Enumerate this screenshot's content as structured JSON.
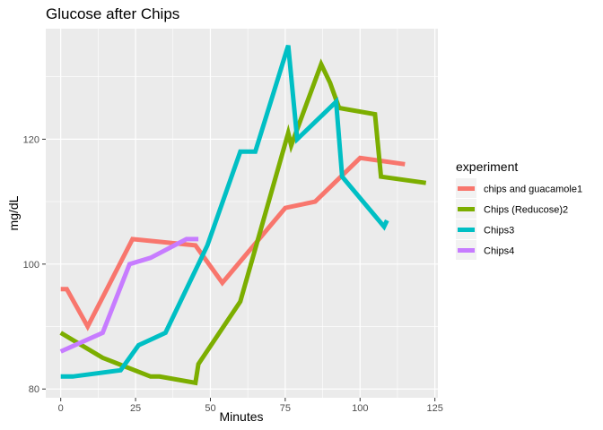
{
  "chart_data": {
    "type": "line",
    "title": "Glucose after Chips",
    "xlabel": "Minutes",
    "ylabel": "mg/dL",
    "xlim": [
      -5,
      126
    ],
    "ylim": [
      78.6,
      137.7
    ],
    "x_ticks": [
      0,
      25,
      50,
      75,
      100,
      125
    ],
    "y_ticks": [
      80,
      100,
      120
    ],
    "grid": true,
    "legend": {
      "title": "experiment",
      "placement": "right"
    },
    "series": [
      {
        "name": "chips and guacamole1",
        "color": "#F8766D",
        "x": [
          0,
          2,
          9,
          24,
          45,
          54,
          75,
          85,
          100,
          115
        ],
        "y": [
          96,
          96,
          90,
          104,
          103,
          97,
          109,
          110,
          117,
          116
        ]
      },
      {
        "name": "Chips (Reducose)2",
        "color": "#7CAE00",
        "x": [
          0,
          14,
          30,
          33,
          45,
          46,
          60,
          76,
          77,
          87,
          90,
          93,
          105,
          107,
          122
        ],
        "y": [
          89,
          85,
          82,
          82,
          81,
          84,
          94,
          121,
          119,
          132,
          129,
          125,
          124,
          114,
          113
        ]
      },
      {
        "name": "Chips3",
        "color": "#00BFC4",
        "x": [
          0,
          4,
          20,
          26,
          35,
          49,
          60,
          65,
          76,
          79,
          92,
          94,
          108,
          109
        ],
        "y": [
          82,
          82,
          83,
          87,
          89,
          103,
          118,
          118,
          135,
          120,
          126,
          114,
          106,
          107
        ]
      },
      {
        "name": "Chips4",
        "color": "#C77CFF",
        "x": [
          0,
          14,
          23,
          30,
          42,
          46
        ],
        "y": [
          86,
          89,
          100,
          101,
          104,
          104
        ]
      }
    ]
  }
}
